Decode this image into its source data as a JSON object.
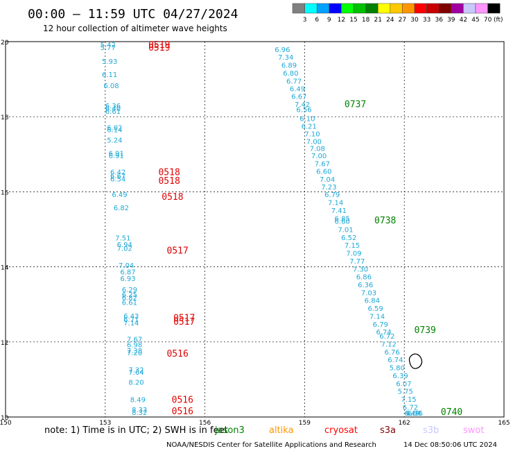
{
  "header": {
    "title": "00:00 – 11:59 UTC 04/27/2024",
    "subtitle": "12 hour collection of altimeter wave heights"
  },
  "legend": {
    "unit": "(ft)",
    "colors": [
      "#808080",
      "#00ffff",
      "#00a0ff",
      "#0000ff",
      "#00ff00",
      "#00c000",
      "#008000",
      "#ffff00",
      "#ffc800",
      "#ff9600",
      "#ff0000",
      "#c80000",
      "#800000",
      "#a000a0",
      "#c8c8ff",
      "#ff96ff",
      "#000000"
    ],
    "labels": [
      "3",
      "6",
      "9",
      "12",
      "15",
      "18",
      "21",
      "24",
      "27",
      "30",
      "33",
      "36",
      "39",
      "42",
      "45",
      "70"
    ]
  },
  "footer": {
    "note": "note:  1) Time is in UTC; 2) SWH is in feet",
    "satellites": [
      {
        "name": "jason3",
        "color": "#008000"
      },
      {
        "name": "altika",
        "color": "#ff9600"
      },
      {
        "name": "cryosat",
        "color": "#ff0000"
      },
      {
        "name": "s3a",
        "color": "#800000"
      },
      {
        "name": "s3b",
        "color": "#c8c8ff"
      },
      {
        "name": "swot",
        "color": "#ff96ff"
      }
    ],
    "credit": "NOAA/NESDIS Center for Satellite Applications and Research",
    "timestamp": "14 Dec 08:50:06 UTC 2024"
  },
  "chart_data": {
    "type": "scatter",
    "xlim": [
      150,
      165
    ],
    "ylim": [
      10,
      20
    ],
    "x_ticks": [
      "150",
      "153",
      "156",
      "159",
      "162",
      "165"
    ],
    "y_ticks": [
      "10",
      "12",
      "14",
      "16",
      "18",
      "20"
    ],
    "grid": true,
    "point_color": "#1ea8d6",
    "tracks": [
      {
        "name": "cryosat",
        "color": "#e00000",
        "points": [
          {
            "x": 152.85,
            "y": 19.93,
            "v": "5.42"
          },
          {
            "x": 152.85,
            "y": 19.85,
            "v": "5.77"
          },
          {
            "x": 152.9,
            "y": 19.48,
            "v": "5.93"
          },
          {
            "x": 152.9,
            "y": 19.13,
            "v": "6.11"
          },
          {
            "x": 152.95,
            "y": 18.84,
            "v": "6.08"
          },
          {
            "x": 153.0,
            "y": 18.3,
            "v": "6.36"
          },
          {
            "x": 153.0,
            "y": 18.23,
            "v": "6.40"
          },
          {
            "x": 153.0,
            "y": 18.15,
            "v": "6.61"
          },
          {
            "x": 153.05,
            "y": 17.72,
            "v": "6.02"
          },
          {
            "x": 153.05,
            "y": 17.66,
            "v": "6.14"
          },
          {
            "x": 153.05,
            "y": 17.38,
            "v": "5.24"
          },
          {
            "x": 153.1,
            "y": 17.03,
            "v": "6.91"
          },
          {
            "x": 153.1,
            "y": 16.97,
            "v": "6.91"
          },
          {
            "x": 153.15,
            "y": 16.53,
            "v": "6.42"
          },
          {
            "x": 153.15,
            "y": 16.43,
            "v": "6.67"
          },
          {
            "x": 153.15,
            "y": 16.35,
            "v": "6.54"
          },
          {
            "x": 153.2,
            "y": 15.93,
            "v": "6.49"
          },
          {
            "x": 153.25,
            "y": 15.58,
            "v": "6.82"
          },
          {
            "x": 153.3,
            "y": 14.78,
            "v": "7.51"
          },
          {
            "x": 153.35,
            "y": 14.6,
            "v": "6.94"
          },
          {
            "x": 153.35,
            "y": 14.5,
            "v": "7.02"
          },
          {
            "x": 153.4,
            "y": 14.05,
            "v": "7.04"
          },
          {
            "x": 153.45,
            "y": 13.87,
            "v": "6.87"
          },
          {
            "x": 153.45,
            "y": 13.7,
            "v": "6.93"
          },
          {
            "x": 153.5,
            "y": 13.4,
            "v": "6.29"
          },
          {
            "x": 153.5,
            "y": 13.27,
            "v": "6.25"
          },
          {
            "x": 153.5,
            "y": 13.19,
            "v": "6.82"
          },
          {
            "x": 153.5,
            "y": 13.06,
            "v": "6.61"
          },
          {
            "x": 153.55,
            "y": 12.7,
            "v": "6.43"
          },
          {
            "x": 153.55,
            "y": 12.61,
            "v": "6.71"
          },
          {
            "x": 153.55,
            "y": 12.51,
            "v": "7.14"
          },
          {
            "x": 153.65,
            "y": 12.08,
            "v": "7.67"
          },
          {
            "x": 153.65,
            "y": 11.93,
            "v": "6.98"
          },
          {
            "x": 153.65,
            "y": 11.77,
            "v": "7.38"
          },
          {
            "x": 153.65,
            "y": 11.72,
            "v": "7.20"
          },
          {
            "x": 153.7,
            "y": 11.27,
            "v": "7.32"
          },
          {
            "x": 153.7,
            "y": 11.2,
            "v": "7.64"
          },
          {
            "x": 153.7,
            "y": 10.93,
            "v": "8.20"
          },
          {
            "x": 153.75,
            "y": 10.47,
            "v": "8.49"
          },
          {
            "x": 153.8,
            "y": 10.2,
            "v": "8.33"
          },
          {
            "x": 153.8,
            "y": 10.13,
            "v": "8.32"
          }
        ],
        "times": [
          {
            "x": 154.3,
            "y": 19.93,
            "label": "0519"
          },
          {
            "x": 154.3,
            "y": 19.85,
            "label": "0519"
          },
          {
            "x": 154.6,
            "y": 16.53,
            "label": "0518"
          },
          {
            "x": 154.6,
            "y": 16.3,
            "label": "0518"
          },
          {
            "x": 154.7,
            "y": 15.88,
            "label": "0518"
          },
          {
            "x": 154.85,
            "y": 14.45,
            "label": "0517"
          },
          {
            "x": 155.05,
            "y": 12.65,
            "label": "0517"
          },
          {
            "x": 155.05,
            "y": 12.55,
            "label": "0517"
          },
          {
            "x": 154.85,
            "y": 11.7,
            "label": "0516"
          },
          {
            "x": 155.0,
            "y": 10.47,
            "label": "0516"
          },
          {
            "x": 155.0,
            "y": 10.17,
            "label": "0516"
          }
        ]
      },
      {
        "name": "jason3",
        "color": "#008000",
        "points": [
          {
            "x": 158.1,
            "y": 19.8,
            "v": "6.96"
          },
          {
            "x": 158.2,
            "y": 19.59,
            "v": "7.34"
          },
          {
            "x": 158.3,
            "y": 19.38,
            "v": "6.89"
          },
          {
            "x": 158.35,
            "y": 19.17,
            "v": "6.80"
          },
          {
            "x": 158.45,
            "y": 18.96,
            "v": "6.77"
          },
          {
            "x": 158.55,
            "y": 18.75,
            "v": "6.49"
          },
          {
            "x": 158.6,
            "y": 18.55,
            "v": "6.67"
          },
          {
            "x": 158.7,
            "y": 18.34,
            "v": "7.42"
          },
          {
            "x": 158.75,
            "y": 18.2,
            "v": "6.56"
          },
          {
            "x": 158.85,
            "y": 17.96,
            "v": "6.10"
          },
          {
            "x": 158.9,
            "y": 17.75,
            "v": "6.21"
          },
          {
            "x": 159.0,
            "y": 17.55,
            "v": "7.10"
          },
          {
            "x": 159.05,
            "y": 17.35,
            "v": "7.00"
          },
          {
            "x": 159.15,
            "y": 17.16,
            "v": "7.08"
          },
          {
            "x": 159.2,
            "y": 16.97,
            "v": "7.00"
          },
          {
            "x": 159.3,
            "y": 16.76,
            "v": "7.67"
          },
          {
            "x": 159.35,
            "y": 16.55,
            "v": "6.60"
          },
          {
            "x": 159.45,
            "y": 16.34,
            "v": "7.04"
          },
          {
            "x": 159.5,
            "y": 16.14,
            "v": "7.23"
          },
          {
            "x": 159.6,
            "y": 15.93,
            "v": "6.79"
          },
          {
            "x": 159.7,
            "y": 15.72,
            "v": "7.14"
          },
          {
            "x": 159.8,
            "y": 15.51,
            "v": "7.41"
          },
          {
            "x": 159.9,
            "y": 15.3,
            "v": "6.85"
          },
          {
            "x": 159.9,
            "y": 15.22,
            "v": "6.60"
          },
          {
            "x": 160.0,
            "y": 15.0,
            "v": "7.01"
          },
          {
            "x": 160.1,
            "y": 14.79,
            "v": "6.52"
          },
          {
            "x": 160.2,
            "y": 14.58,
            "v": "7.15"
          },
          {
            "x": 160.25,
            "y": 14.37,
            "v": "7.09"
          },
          {
            "x": 160.35,
            "y": 14.16,
            "v": "7.77"
          },
          {
            "x": 160.45,
            "y": 13.95,
            "v": "7.30"
          },
          {
            "x": 160.55,
            "y": 13.74,
            "v": "6.86"
          },
          {
            "x": 160.6,
            "y": 13.53,
            "v": "6.36"
          },
          {
            "x": 160.7,
            "y": 13.32,
            "v": "7.03"
          },
          {
            "x": 160.8,
            "y": 13.11,
            "v": "6.84"
          },
          {
            "x": 160.9,
            "y": 12.9,
            "v": "6.59"
          },
          {
            "x": 160.95,
            "y": 12.69,
            "v": "7.14"
          },
          {
            "x": 161.05,
            "y": 12.48,
            "v": "6.79"
          },
          {
            "x": 161.15,
            "y": 12.27,
            "v": "6.74"
          },
          {
            "x": 161.25,
            "y": 12.16,
            "v": "6.72"
          },
          {
            "x": 161.3,
            "y": 11.95,
            "v": "7.12"
          },
          {
            "x": 161.4,
            "y": 11.74,
            "v": "6.76"
          },
          {
            "x": 161.5,
            "y": 11.53,
            "v": "6.74"
          },
          {
            "x": 161.55,
            "y": 11.32,
            "v": "5.80"
          },
          {
            "x": 161.65,
            "y": 11.11,
            "v": "6.39"
          },
          {
            "x": 161.75,
            "y": 10.9,
            "v": "6.07"
          },
          {
            "x": 161.8,
            "y": 10.69,
            "v": "5.75"
          },
          {
            "x": 161.9,
            "y": 10.48,
            "v": "7.15"
          },
          {
            "x": 161.95,
            "y": 10.27,
            "v": "6.72"
          },
          {
            "x": 162.0,
            "y": 10.06,
            "v": "6.49"
          },
          {
            "x": 162.05,
            "y": 9.85,
            "v": "6.64"
          },
          {
            "x": 162.1,
            "y": 9.64,
            "v": "6.75"
          }
        ],
        "times": [
          {
            "x": 160.2,
            "y": 18.35,
            "label": "0737"
          },
          {
            "x": 161.1,
            "y": 15.25,
            "label": "0738"
          },
          {
            "x": 162.3,
            "y": 12.33,
            "label": "0739"
          },
          {
            "x": 163.1,
            "y": 9.64,
            "label": "0740"
          }
        ]
      }
    ]
  }
}
